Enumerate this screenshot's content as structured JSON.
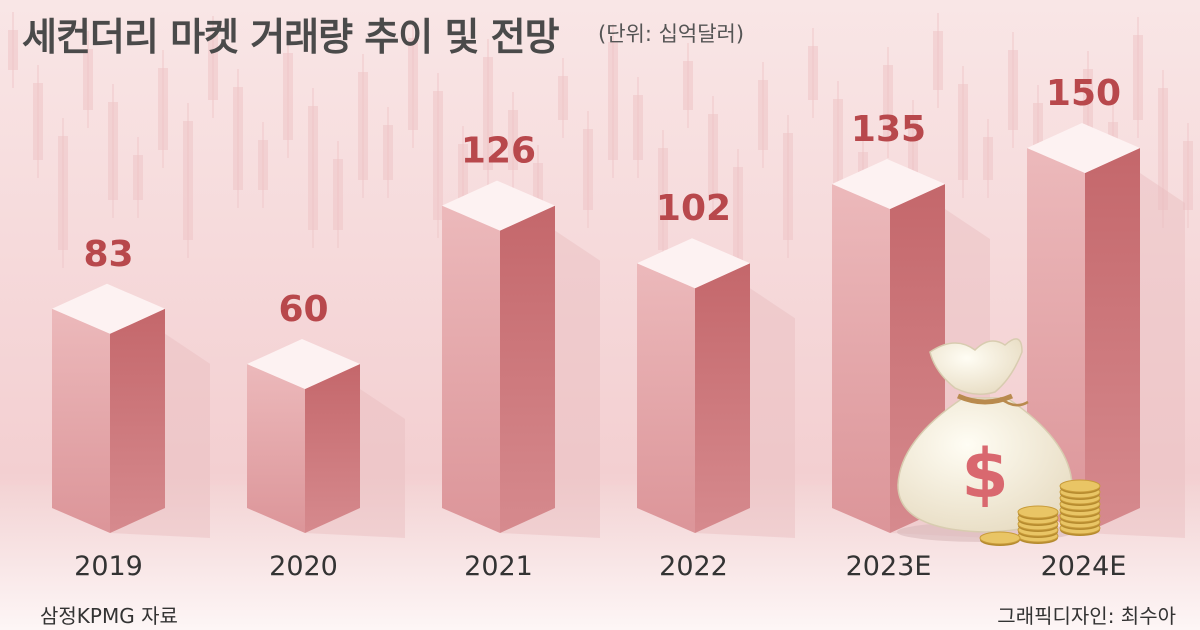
{
  "header": {
    "title": "세컨더리 마켓 거래량 추이 및 전망",
    "unit": "(단위: 십억달러)"
  },
  "footer": {
    "source": "삼정KPMG 자료",
    "credit": "그래픽디자인: 최수아"
  },
  "colors": {
    "background": "#f7dfe0",
    "bar_front": "#e2a3a6",
    "bar_side": "#c86e72",
    "bar_top": "#fdf2f2",
    "value_label": "#b8484c",
    "category_label": "#333333"
  },
  "icons": [
    "money-bag-icon",
    "dollar-sign-icon",
    "coin-stack-icon"
  ],
  "chart_data": {
    "type": "bar",
    "categories": [
      "2019",
      "2020",
      "2021",
      "2022",
      "2023E",
      "2024E"
    ],
    "values": [
      83,
      60,
      126,
      102,
      135,
      150
    ],
    "ylim": [
      0,
      150
    ],
    "grid": false,
    "legend": "none"
  }
}
